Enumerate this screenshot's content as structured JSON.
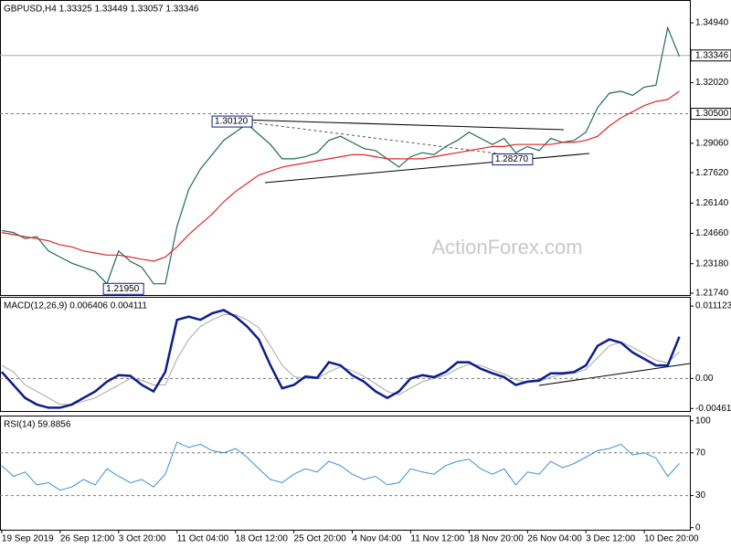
{
  "chart_data": [
    {
      "type": "line",
      "title": "GBPUSD,H4  1.33325 1.33449 1.33057 1.33346",
      "watermark": "ActionForex.com",
      "xlim": [
        -0.15,
        58.9
      ],
      "ylim": [
        1.2165,
        1.3601
      ],
      "yticks": [
        {
          "value": 1.3494,
          "label": "1.34940"
        },
        {
          "value": 1.3202,
          "label": "1.32020"
        },
        {
          "value": 1.2906,
          "label": "1.29060"
        },
        {
          "value": 1.2762,
          "label": "1.27620"
        },
        {
          "value": 1.2614,
          "label": "1.26140"
        },
        {
          "value": 1.2466,
          "label": "1.24660"
        },
        {
          "value": 1.2318,
          "label": "1.23180"
        },
        {
          "value": 1.2174,
          "label": "1.21740"
        }
      ],
      "levels": [
        {
          "value": 1.33346,
          "label": "1.33346",
          "style": "solid"
        },
        {
          "value": 1.305,
          "label": "1.30500",
          "style": "dashed"
        }
      ],
      "annotations": [
        {
          "index": 18,
          "value": 1.3012,
          "label": "1.30120"
        },
        {
          "index": 8.7,
          "value": 1.2195,
          "label": "1.21950"
        },
        {
          "index": 42,
          "value": 1.2827,
          "label": "1.28270"
        }
      ],
      "series": [
        {
          "name": "GBPUSD",
          "color": "#1f6b5b",
          "width": 1.2,
          "values": [
            1.248,
            1.247,
            1.244,
            1.245,
            1.238,
            1.235,
            1.232,
            1.23,
            1.228,
            1.222,
            1.238,
            1.233,
            1.23,
            1.222,
            1.222,
            1.25,
            1.268,
            1.278,
            1.285,
            1.292,
            1.296,
            1.3,
            1.295,
            1.29,
            1.283,
            1.283,
            1.284,
            1.286,
            1.292,
            1.294,
            1.291,
            1.288,
            1.287,
            1.283,
            1.279,
            1.284,
            1.286,
            1.285,
            1.289,
            1.292,
            1.296,
            1.293,
            1.29,
            1.293,
            1.286,
            1.289,
            1.287,
            1.293,
            1.291,
            1.292,
            1.296,
            1.308,
            1.315,
            1.316,
            1.314,
            1.318,
            1.319,
            1.347,
            1.333
          ]
        },
        {
          "name": "MA",
          "color": "#e02828",
          "width": 1.2,
          "values": [
            1.247,
            1.246,
            1.245,
            1.244,
            1.243,
            1.241,
            1.24,
            1.238,
            1.237,
            1.236,
            1.236,
            1.235,
            1.234,
            1.233,
            1.235,
            1.24,
            1.246,
            1.251,
            1.256,
            1.262,
            1.267,
            1.271,
            1.275,
            1.277,
            1.279,
            1.28,
            1.281,
            1.282,
            1.283,
            1.284,
            1.285,
            1.285,
            1.284,
            1.283,
            1.283,
            1.283,
            1.283,
            1.284,
            1.285,
            1.286,
            1.287,
            1.288,
            1.289,
            1.289,
            1.29,
            1.29,
            1.29,
            1.29,
            1.291,
            1.291,
            1.292,
            1.294,
            1.299,
            1.303,
            1.306,
            1.309,
            1.311,
            1.312,
            1.316
          ]
        }
      ]
    },
    {
      "type": "line",
      "title": "MACD(12,26,9) 0.006406 0.004111",
      "xlim": [
        -0.15,
        58.9
      ],
      "ylim": [
        -0.005,
        0.0124
      ],
      "yticks": [
        0.011123,
        {
          "value": 0,
          "label": "0.00"
        },
        -0.004617
      ],
      "levels": [
        {
          "value": 0,
          "style": "dashed"
        }
      ],
      "series": [
        {
          "name": "Signal",
          "color": "#a8a8a8",
          "width": 1,
          "values": [
            0.002,
            0.001,
            -0.001,
            -0.002,
            -0.003,
            -0.004,
            -0.004,
            -0.0035,
            -0.003,
            -0.002,
            -0.001,
            0.0,
            -0.0003,
            -0.001,
            -0.001,
            0.003,
            0.006,
            0.008,
            0.009,
            0.0098,
            0.0098,
            0.009,
            0.0078,
            0.005,
            0.002,
            0.0003,
            0.0,
            0.0,
            0.001,
            0.0018,
            0.0012,
            0.0003,
            -0.0008,
            -0.002,
            -0.0025,
            -0.0015,
            -0.0005,
            0.0,
            0.0005,
            0.0015,
            0.0022,
            0.002,
            0.0013,
            0.0007,
            -0.0002,
            -0.0006,
            -0.0005,
            0.0002,
            0.0006,
            0.0008,
            0.0014,
            0.0032,
            0.005,
            0.0056,
            0.0048,
            0.0038,
            0.0028,
            0.0024,
            0.0041
          ]
        },
        {
          "name": "MACD",
          "color": "#0c1d8c",
          "width": 2.5,
          "values": [
            0.001,
            -0.001,
            -0.003,
            -0.004,
            -0.0045,
            -0.0045,
            -0.004,
            -0.003,
            -0.002,
            -0.0005,
            0.0005,
            0.0004,
            -0.001,
            -0.002,
            0.001,
            0.009,
            0.0095,
            0.009,
            0.01,
            0.0105,
            0.0095,
            0.008,
            0.006,
            0.002,
            -0.0015,
            -0.001,
            0.0003,
            0.0001,
            0.0025,
            0.002,
            0.0005,
            -0.0005,
            -0.002,
            -0.003,
            -0.002,
            0.0,
            0.0005,
            0.0002,
            0.001,
            0.0025,
            0.0025,
            0.0015,
            0.0008,
            0.0002,
            -0.001,
            -0.0005,
            -0.0003,
            0.0008,
            0.0008,
            0.001,
            0.002,
            0.005,
            0.006,
            0.0055,
            0.004,
            0.003,
            0.002,
            0.002,
            0.006406
          ]
        }
      ]
    },
    {
      "type": "line",
      "title": "RSI(14) 59.8856",
      "xlim": [
        -0.15,
        58.9
      ],
      "ylim": [
        -2,
        104
      ],
      "yticks": [
        100,
        70,
        30,
        0
      ],
      "levels": [
        {
          "value": 70,
          "style": "dashed"
        },
        {
          "value": 30,
          "style": "dashed"
        }
      ],
      "xticks": [
        {
          "value": 0,
          "label": "19 Sep 2019"
        },
        {
          "value": 5,
          "label": "26 Sep 12:00"
        },
        {
          "value": 10,
          "label": "3 Oct 20:00"
        },
        {
          "value": 15,
          "label": "11 Oct 04:00"
        },
        {
          "value": 20,
          "label": "18 Oct 12:00"
        },
        {
          "value": 25,
          "label": "25 Oct 20:00"
        },
        {
          "value": 30,
          "label": "4 Nov 04:00"
        },
        {
          "value": 35,
          "label": "11 Nov 12:00"
        },
        {
          "value": 40,
          "label": "18 Nov 20:00"
        },
        {
          "value": 45,
          "label": "26 Nov 04:00"
        },
        {
          "value": 50,
          "label": "3 Dec 12:00"
        },
        {
          "value": 55,
          "label": "10 Dec 20:00"
        }
      ],
      "series": [
        {
          "name": "RSI",
          "color": "#3a8fd8",
          "width": 1,
          "values": [
            58,
            48,
            52,
            40,
            42,
            35,
            38,
            45,
            40,
            55,
            48,
            42,
            45,
            38,
            50,
            80,
            75,
            78,
            72,
            70,
            74,
            66,
            55,
            45,
            42,
            50,
            55,
            52,
            62,
            58,
            50,
            45,
            48,
            40,
            42,
            55,
            52,
            50,
            58,
            62,
            64,
            55,
            50,
            55,
            40,
            52,
            50,
            62,
            56,
            60,
            66,
            72,
            74,
            78,
            68,
            70,
            65,
            48,
            60
          ]
        }
      ]
    }
  ]
}
